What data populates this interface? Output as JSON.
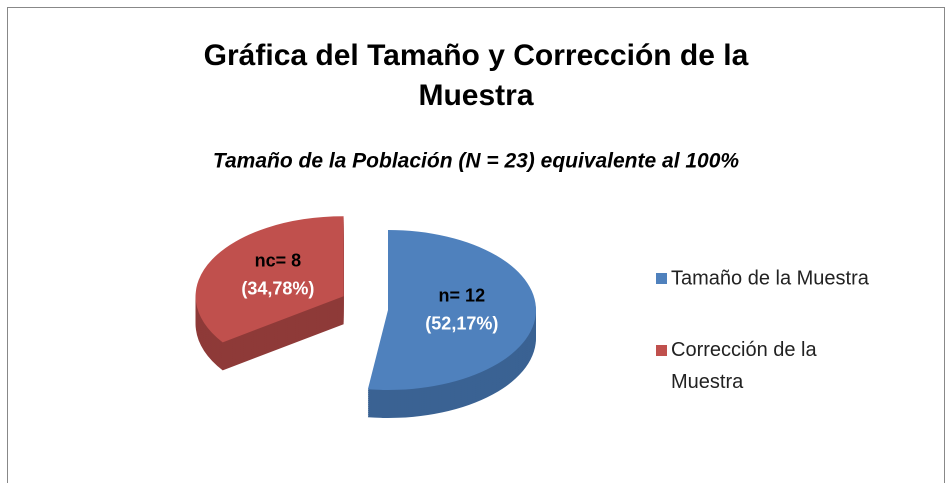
{
  "chart_data": {
    "type": "pie",
    "title": "Gráfica del Tamaño y Corrección de la Muestra",
    "subtitle": "Tamaño de la Población (N = 23) equivalente al 100%",
    "categories": [
      "Tamaño de la Muestra",
      "Corrección de la Muestra"
    ],
    "values": [
      52.17,
      34.78
    ],
    "value_labels": [
      "(52,17%)",
      "(34,78%)"
    ],
    "count_labels": [
      "n= 12",
      "nc= 8"
    ],
    "colors": [
      "#4f81bd",
      "#c0504d"
    ],
    "side_colors": [
      "#3a6293",
      "#8e3a38"
    ],
    "legend": "right"
  }
}
